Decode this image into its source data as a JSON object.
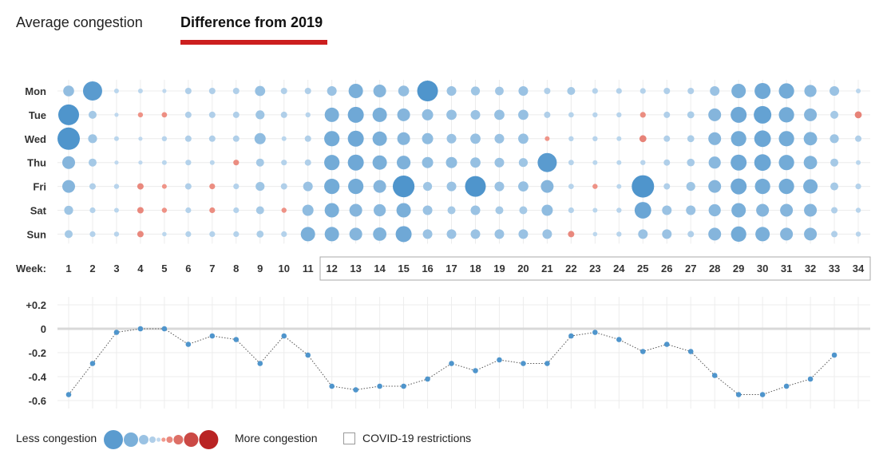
{
  "tabs": [
    {
      "label": "Average congestion",
      "active": false
    },
    {
      "label": "Difference from 2019",
      "active": true
    }
  ],
  "colors": {
    "less_strong": "#4f95cc",
    "less_light": "#c5dcf0",
    "more_light": "#f5a193",
    "more_strong": "#b92323",
    "active_tab_underline": "#cc1f1f",
    "line": "#4f95cc"
  },
  "legend": {
    "less_label": "Less congestion",
    "more_label": "More congestion",
    "covid_label": "COVID-19 restrictions",
    "scale": [
      -0.5,
      -0.35,
      -0.2,
      -0.1,
      -0.03,
      0.03,
      0.1,
      0.2,
      0.35,
      0.5
    ]
  },
  "chart_data": [
    {
      "type": "heatmap",
      "title": "",
      "week_label": "Week:",
      "rows": [
        "Mon",
        "Tue",
        "Wed",
        "Thu",
        "Fri",
        "Sat",
        "Sun"
      ],
      "weeks": [
        "1",
        "2",
        "3",
        "4",
        "5",
        "6",
        "7",
        "8",
        "9",
        "10",
        "11",
        "12",
        "13",
        "14",
        "15",
        "16",
        "17",
        "18",
        "19",
        "20",
        "21",
        "22",
        "23",
        "24",
        "25",
        "26",
        "27",
        "28",
        "29",
        "30",
        "31",
        "32",
        "33",
        "34"
      ],
      "covid_restriction_weeks": [
        12,
        34
      ],
      "values": [
        [
          -0.24,
          -0.5,
          -0.05,
          -0.05,
          -0.03,
          -0.1,
          -0.1,
          -0.1,
          -0.22,
          -0.1,
          -0.1,
          -0.2,
          -0.35,
          -0.3,
          -0.24,
          -0.55,
          -0.2,
          -0.18,
          -0.17,
          -0.2,
          -0.1,
          -0.15,
          -0.08,
          -0.08,
          -0.08,
          -0.1,
          -0.1,
          -0.2,
          -0.35,
          -0.4,
          -0.38,
          -0.28,
          -0.2,
          -0.05
        ],
        [
          -0.55,
          -0.15,
          -0.03,
          0.06,
          0.07,
          -0.1,
          -0.1,
          -0.1,
          -0.18,
          -0.1,
          -0.06,
          -0.35,
          -0.4,
          -0.35,
          -0.3,
          -0.25,
          -0.22,
          -0.2,
          -0.22,
          -0.22,
          -0.1,
          -0.07,
          -0.06,
          -0.06,
          0.08,
          -0.1,
          -0.12,
          -0.3,
          -0.4,
          -0.45,
          -0.38,
          -0.3,
          -0.15,
          0.12
        ],
        [
          -0.6,
          -0.18,
          -0.05,
          -0.03,
          -0.06,
          -0.1,
          -0.1,
          -0.1,
          -0.25,
          -0.05,
          -0.1,
          -0.38,
          -0.4,
          -0.35,
          -0.3,
          -0.25,
          -0.2,
          -0.22,
          -0.2,
          -0.22,
          0.05,
          -0.06,
          -0.06,
          -0.05,
          0.12,
          -0.1,
          -0.12,
          -0.3,
          -0.38,
          -0.42,
          -0.38,
          -0.32,
          -0.18,
          -0.1
        ],
        [
          -0.3,
          -0.15,
          -0.03,
          -0.03,
          -0.05,
          -0.08,
          -0.05,
          0.08,
          -0.15,
          -0.08,
          -0.1,
          -0.38,
          -0.4,
          -0.35,
          -0.33,
          -0.25,
          -0.25,
          -0.22,
          -0.2,
          -0.18,
          -0.5,
          -0.07,
          -0.05,
          -0.05,
          -0.06,
          -0.1,
          -0.14,
          -0.28,
          -0.4,
          -0.42,
          -0.38,
          -0.32,
          -0.15,
          -0.05
        ],
        [
          -0.3,
          -0.1,
          -0.06,
          0.1,
          0.05,
          -0.1,
          0.08,
          -0.08,
          -0.18,
          -0.1,
          -0.2,
          -0.38,
          -0.38,
          -0.3,
          -0.58,
          -0.18,
          -0.2,
          -0.55,
          -0.2,
          -0.22,
          -0.3,
          -0.07,
          0.06,
          -0.05,
          -0.6,
          -0.1,
          -0.18,
          -0.3,
          -0.4,
          -0.38,
          -0.38,
          -0.35,
          -0.15,
          -0.08
        ],
        [
          -0.18,
          -0.08,
          -0.05,
          0.1,
          0.06,
          -0.08,
          0.08,
          -0.08,
          -0.15,
          0.06,
          -0.25,
          -0.35,
          -0.3,
          -0.28,
          -0.35,
          -0.2,
          -0.15,
          -0.2,
          -0.15,
          -0.15,
          -0.25,
          -0.08,
          -0.05,
          -0.06,
          -0.42,
          -0.2,
          -0.2,
          -0.28,
          -0.35,
          -0.3,
          -0.3,
          -0.3,
          -0.1,
          -0.06
        ],
        [
          -0.15,
          -0.08,
          -0.06,
          0.1,
          -0.04,
          -0.08,
          -0.08,
          -0.08,
          -0.12,
          -0.08,
          -0.35,
          -0.35,
          -0.3,
          -0.32,
          -0.4,
          -0.2,
          -0.2,
          -0.2,
          -0.2,
          -0.2,
          -0.2,
          0.1,
          -0.04,
          -0.06,
          -0.2,
          -0.2,
          -0.1,
          -0.3,
          -0.38,
          -0.35,
          -0.3,
          -0.3,
          -0.1,
          -0.06
        ]
      ]
    },
    {
      "type": "line",
      "title": "",
      "x": [
        1,
        2,
        3,
        4,
        5,
        6,
        7,
        8,
        9,
        10,
        11,
        12,
        13,
        14,
        15,
        16,
        17,
        18,
        19,
        20,
        21,
        22,
        23,
        24,
        25,
        26,
        27,
        28,
        29,
        30,
        31,
        32,
        33
      ],
      "y": [
        -0.55,
        -0.29,
        -0.03,
        0,
        0,
        -0.13,
        -0.06,
        -0.09,
        -0.29,
        -0.06,
        -0.22,
        -0.48,
        -0.51,
        -0.48,
        -0.48,
        -0.42,
        -0.29,
        -0.35,
        -0.26,
        -0.29,
        -0.29,
        -0.06,
        -0.03,
        -0.09,
        -0.19,
        -0.13,
        -0.19,
        -0.39,
        -0.55,
        -0.55,
        -0.48,
        -0.42,
        -0.22
      ],
      "yticks": [
        "+0.2",
        "0",
        "-0.2",
        "-0.4",
        "-0.6"
      ],
      "ytick_values": [
        0.2,
        0,
        -0.2,
        -0.4,
        -0.6
      ],
      "ylim": [
        -0.62,
        0.22
      ],
      "grid": true
    }
  ]
}
